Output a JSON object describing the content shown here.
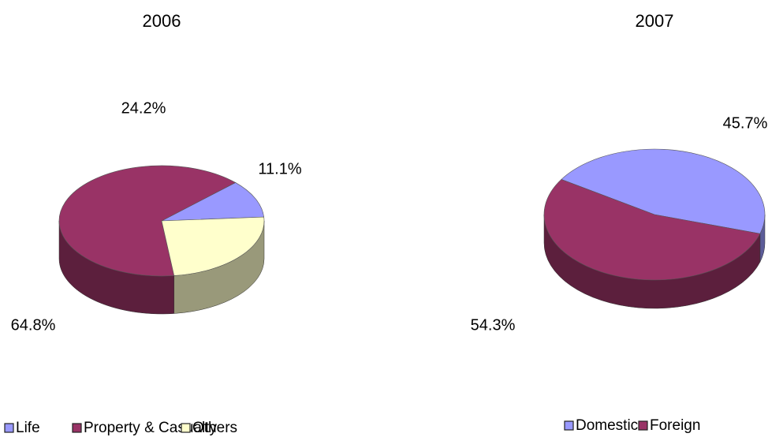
{
  "chart_data": [
    {
      "type": "pie",
      "title": "2006",
      "categories": [
        "Life",
        "Property & Casualty",
        "Others"
      ],
      "values": [
        11.1,
        64.8,
        24.2
      ],
      "value_labels": [
        "11.1%",
        "64.8%",
        "24.2%"
      ],
      "colors": [
        "#9999ff",
        "#993366",
        "#ffffcc"
      ],
      "legend": "bottom"
    },
    {
      "type": "pie",
      "title": "2007",
      "categories": [
        "Domestic",
        "Foreign"
      ],
      "values": [
        45.7,
        54.3
      ],
      "value_labels": [
        "45.7%",
        "54.3%"
      ],
      "colors": [
        "#9999ff",
        "#993366"
      ],
      "legend": "bottom"
    }
  ]
}
